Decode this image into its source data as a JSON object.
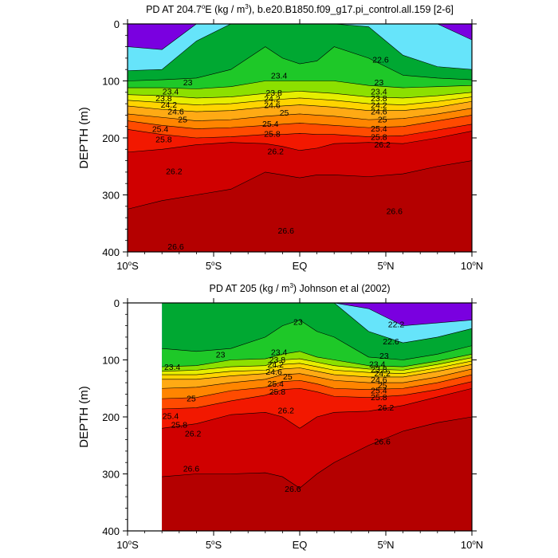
{
  "chart_data": [
    {
      "type": "heatmap",
      "title": "PD AT 204.7°E (kg / m³), b.e20.B1850.f09_g17.pi_control.all.159 [2-6]",
      "title_parts": {
        "prefix": "PD AT 204.7",
        "deg": "o",
        "mid": "E (kg / m",
        "sup": "3",
        "suffix": "), b.e20.B1850.f09_g17.pi_control.all.159 [2-6]"
      },
      "ylabel": "DEPTH (m)",
      "xlim": [
        -10,
        10
      ],
      "ylim": [
        400,
        0
      ],
      "x_tick_values": [
        -10,
        -5,
        0,
        5,
        10
      ],
      "x_ticks": [
        {
          "num": "10",
          "deg": "o",
          "hem": "S"
        },
        {
          "num": "5",
          "deg": "o",
          "hem": "S"
        },
        {
          "num": "EQ",
          "deg": "",
          "hem": ""
        },
        {
          "num": "5",
          "deg": "o",
          "hem": "N"
        },
        {
          "num": "10",
          "deg": "o",
          "hem": "N"
        }
      ],
      "y_ticks": [
        "0",
        "100",
        "200",
        "300",
        "400"
      ],
      "y_tick_values": [
        0,
        100,
        200,
        300,
        400
      ],
      "data_xmin": -10,
      "band_colors": [
        "#7a00e0",
        "#1c1cff",
        "#0060ff",
        "#0a8cf2",
        "#35aaf8",
        "#55c8f8",
        "#66e4fa",
        "#00a832",
        "#1ec828",
        "#8ce000",
        "#e6ee00",
        "#ffd400",
        "#ffaa14",
        "#ff8500",
        "#ff4b00",
        "#f21800",
        "#d00000",
        "#b40000"
      ],
      "levels": [
        22.2,
        22.6,
        23,
        23.4,
        23.8,
        24.2,
        24.6,
        25,
        25.4,
        25.8,
        26.2,
        26.6
      ],
      "isopycnal_depths": {
        "x": [
          -10,
          -8,
          -6,
          -4,
          -2,
          -1,
          0,
          1,
          2,
          4,
          6,
          8,
          10
        ],
        "22.2": [
          40,
          45,
          0,
          0,
          0,
          0,
          0,
          0,
          0,
          0,
          0,
          0,
          28
        ],
        "22.6": [
          82,
          80,
          30,
          0,
          0,
          0,
          0,
          0,
          0,
          5,
          55,
          75,
          80
        ],
        "23": [
          100,
          98,
          95,
          80,
          40,
          60,
          70,
          65,
          40,
          60,
          90,
          95,
          98
        ],
        "23.4": [
          112,
          112,
          114,
          110,
          100,
          100,
          100,
          100,
          100,
          108,
          112,
          110,
          108
        ],
        "23.8": [
          124,
          126,
          130,
          128,
          122,
          120,
          118,
          120,
          122,
          128,
          130,
          126,
          120
        ],
        "24.2": [
          134,
          138,
          142,
          140,
          134,
          132,
          130,
          132,
          134,
          140,
          142,
          136,
          128
        ],
        "24.6": [
          144,
          150,
          154,
          152,
          146,
          144,
          142,
          144,
          146,
          152,
          152,
          146,
          136
        ],
        "25": [
          158,
          164,
          170,
          168,
          162,
          160,
          158,
          160,
          162,
          168,
          166,
          158,
          148
        ],
        "25.4": [
          170,
          178,
          184,
          182,
          178,
          176,
          174,
          176,
          178,
          182,
          180,
          170,
          160
        ],
        "25.8": [
          185,
          194,
          200,
          198,
          194,
          194,
          192,
          194,
          194,
          198,
          196,
          186,
          176
        ],
        "26.2": [
          225,
          220,
          212,
          208,
          210,
          215,
          222,
          218,
          210,
          208,
          210,
          200,
          188
        ],
        "26.6": [
          325,
          310,
          300,
          290,
          260,
          265,
          270,
          265,
          265,
          268,
          263,
          250,
          240
        ]
      },
      "contour_labels": [
        {
          "t": "22.6",
          "x": 4.7,
          "d": 62
        },
        {
          "t": "23",
          "x": -6.5,
          "d": 102
        },
        {
          "t": "23.4",
          "x": -1.2,
          "d": 90
        },
        {
          "t": "23",
          "x": 4.6,
          "d": 102
        },
        {
          "t": "23.4",
          "x": -7.5,
          "d": 118
        },
        {
          "t": "23.8",
          "x": -1.5,
          "d": 120
        },
        {
          "t": "23.4",
          "x": 4.6,
          "d": 118
        },
        {
          "t": "23.8",
          "x": -7.9,
          "d": 130
        },
        {
          "t": "24.2",
          "x": -1.6,
          "d": 131
        },
        {
          "t": "23.8",
          "x": 4.6,
          "d": 130
        },
        {
          "t": "24.2",
          "x": -7.6,
          "d": 141
        },
        {
          "t": "24.6",
          "x": -1.6,
          "d": 142
        },
        {
          "t": "24.2",
          "x": 4.6,
          "d": 142
        },
        {
          "t": "24.6",
          "x": -7.2,
          "d": 153
        },
        {
          "t": "25",
          "x": -0.9,
          "d": 155
        },
        {
          "t": "24.6",
          "x": 4.6,
          "d": 153
        },
        {
          "t": "25",
          "x": -6.8,
          "d": 167
        },
        {
          "t": "25.4",
          "x": -1.7,
          "d": 175
        },
        {
          "t": "25",
          "x": 4.8,
          "d": 167
        },
        {
          "t": "25.4",
          "x": -8.1,
          "d": 184
        },
        {
          "t": "25.8",
          "x": -1.6,
          "d": 192
        },
        {
          "t": "25.4",
          "x": 4.6,
          "d": 183
        },
        {
          "t": "25.8",
          "x": -7.9,
          "d": 202
        },
        {
          "t": "26.2",
          "x": -1.4,
          "d": 223
        },
        {
          "t": "25.8",
          "x": 4.6,
          "d": 198
        },
        {
          "t": "26.2",
          "x": -7.3,
          "d": 258
        },
        {
          "t": "26.2",
          "x": 4.8,
          "d": 211
        },
        {
          "t": "26.6",
          "x": -7.2,
          "d": 390
        },
        {
          "t": "26.6",
          "x": -0.8,
          "d": 362
        },
        {
          "t": "26.6",
          "x": 5.5,
          "d": 328
        }
      ]
    },
    {
      "type": "heatmap",
      "title": "PD AT 205 (kg / m³) Johnson et al (2002)",
      "title_parts": {
        "prefix": "PD AT 205 (kg / m",
        "deg": "",
        "mid": "",
        "sup": "3",
        "suffix": ") Johnson et al (2002)"
      },
      "ylabel": "DEPTH (m)",
      "xlim": [
        -10,
        10
      ],
      "ylim": [
        400,
        0
      ],
      "x_tick_values": [
        -10,
        -5,
        0,
        5,
        10
      ],
      "x_ticks": [
        {
          "num": "10",
          "deg": "o",
          "hem": "S"
        },
        {
          "num": "5",
          "deg": "o",
          "hem": "S"
        },
        {
          "num": "EQ",
          "deg": "",
          "hem": ""
        },
        {
          "num": "5",
          "deg": "o",
          "hem": "N"
        },
        {
          "num": "10",
          "deg": "o",
          "hem": "N"
        }
      ],
      "y_ticks": [
        "0",
        "100",
        "200",
        "300",
        "400"
      ],
      "y_tick_values": [
        0,
        100,
        200,
        300,
        400
      ],
      "data_xmin": -8,
      "band_colors": [
        "#7a00e0",
        "#1c1cff",
        "#0060ff",
        "#0a8cf2",
        "#35aaf8",
        "#55c8f8",
        "#66e4fa",
        "#00a832",
        "#1ec828",
        "#8ce000",
        "#e6ee00",
        "#ffd400",
        "#ffaa14",
        "#ff8500",
        "#ff4b00",
        "#f21800",
        "#d00000",
        "#b40000"
      ],
      "levels": [
        22.2,
        22.6,
        23,
        23.4,
        23.8,
        24.2,
        24.6,
        25,
        25.4,
        25.8,
        26.2,
        26.6
      ],
      "isopycnal_depths": {
        "x": [
          -8,
          -6,
          -4,
          -2,
          -1,
          0,
          1,
          2,
          4,
          6,
          8,
          10
        ],
        "22.2": [
          0,
          0,
          0,
          0,
          0,
          0,
          0,
          0,
          10,
          40,
          35,
          30
        ],
        "22.6": [
          0,
          0,
          0,
          0,
          0,
          0,
          0,
          0,
          50,
          70,
          60,
          45
        ],
        "23": [
          80,
          85,
          80,
          60,
          40,
          30,
          50,
          60,
          95,
          100,
          90,
          75
        ],
        "23.4": [
          112,
          110,
          100,
          98,
          90,
          85,
          95,
          100,
          110,
          112,
          102,
          90
        ],
        "23.8": [
          120,
          118,
          112,
          110,
          100,
          98,
          104,
          110,
          116,
          118,
          108,
          96
        ],
        "24.2": [
          126,
          126,
          120,
          118,
          108,
          106,
          112,
          118,
          122,
          124,
          114,
          102
        ],
        "24.6": [
          134,
          134,
          128,
          124,
          116,
          114,
          120,
          126,
          130,
          130,
          120,
          108
        ],
        "25": [
          150,
          148,
          140,
          134,
          126,
          124,
          130,
          136,
          140,
          140,
          130,
          116
        ],
        "25.4": [
          168,
          166,
          154,
          148,
          138,
          136,
          142,
          150,
          152,
          150,
          140,
          126
        ],
        "25.8": [
          186,
          184,
          172,
          162,
          152,
          150,
          156,
          164,
          166,
          162,
          152,
          138
        ],
        "26.2": [
          220,
          212,
          196,
          192,
          200,
          220,
          200,
          192,
          190,
          180,
          165,
          150
        ],
        "26.6": [
          305,
          300,
          300,
          298,
          305,
          325,
          300,
          280,
          250,
          225,
          210,
          200
        ]
      },
      "contour_labels": [
        {
          "t": "23",
          "x": -0.1,
          "d": 33
        },
        {
          "t": "22.2",
          "x": 5.6,
          "d": 37
        },
        {
          "t": "22.6",
          "x": 5.3,
          "d": 67
        },
        {
          "t": "23",
          "x": -4.6,
          "d": 90
        },
        {
          "t": "23.4",
          "x": -1.2,
          "d": 86
        },
        {
          "t": "23",
          "x": 4.9,
          "d": 92
        },
        {
          "t": "23.4",
          "x": -7.4,
          "d": 112
        },
        {
          "t": "23.8",
          "x": -1.3,
          "d": 99
        },
        {
          "t": "23.4",
          "x": 4.5,
          "d": 107
        },
        {
          "t": "24.2",
          "x": -1.4,
          "d": 108
        },
        {
          "t": "23.8",
          "x": 4.6,
          "d": 116
        },
        {
          "t": "24.6",
          "x": -1.5,
          "d": 120
        },
        {
          "t": "25",
          "x": -0.7,
          "d": 129
        },
        {
          "t": "24.2",
          "x": 4.8,
          "d": 123
        },
        {
          "t": "25.4",
          "x": -1.4,
          "d": 141
        },
        {
          "t": "24.6",
          "x": 4.6,
          "d": 134
        },
        {
          "t": "25.8",
          "x": -1.3,
          "d": 155
        },
        {
          "t": "25",
          "x": 4.8,
          "d": 144
        },
        {
          "t": "25",
          "x": -6.3,
          "d": 167
        },
        {
          "t": "25.4",
          "x": 4.6,
          "d": 153
        },
        {
          "t": "25.4",
          "x": -7.5,
          "d": 198
        },
        {
          "t": "25.8",
          "x": 4.6,
          "d": 165
        },
        {
          "t": "25.8",
          "x": -7.0,
          "d": 213
        },
        {
          "t": "26.2",
          "x": -0.8,
          "d": 188
        },
        {
          "t": "26.2",
          "x": 5.0,
          "d": 183
        },
        {
          "t": "26.2",
          "x": -6.2,
          "d": 229
        },
        {
          "t": "26.6",
          "x": -6.3,
          "d": 290
        },
        {
          "t": "26.6",
          "x": 4.8,
          "d": 243
        },
        {
          "t": "26.6",
          "x": -0.4,
          "d": 326
        }
      ]
    }
  ]
}
